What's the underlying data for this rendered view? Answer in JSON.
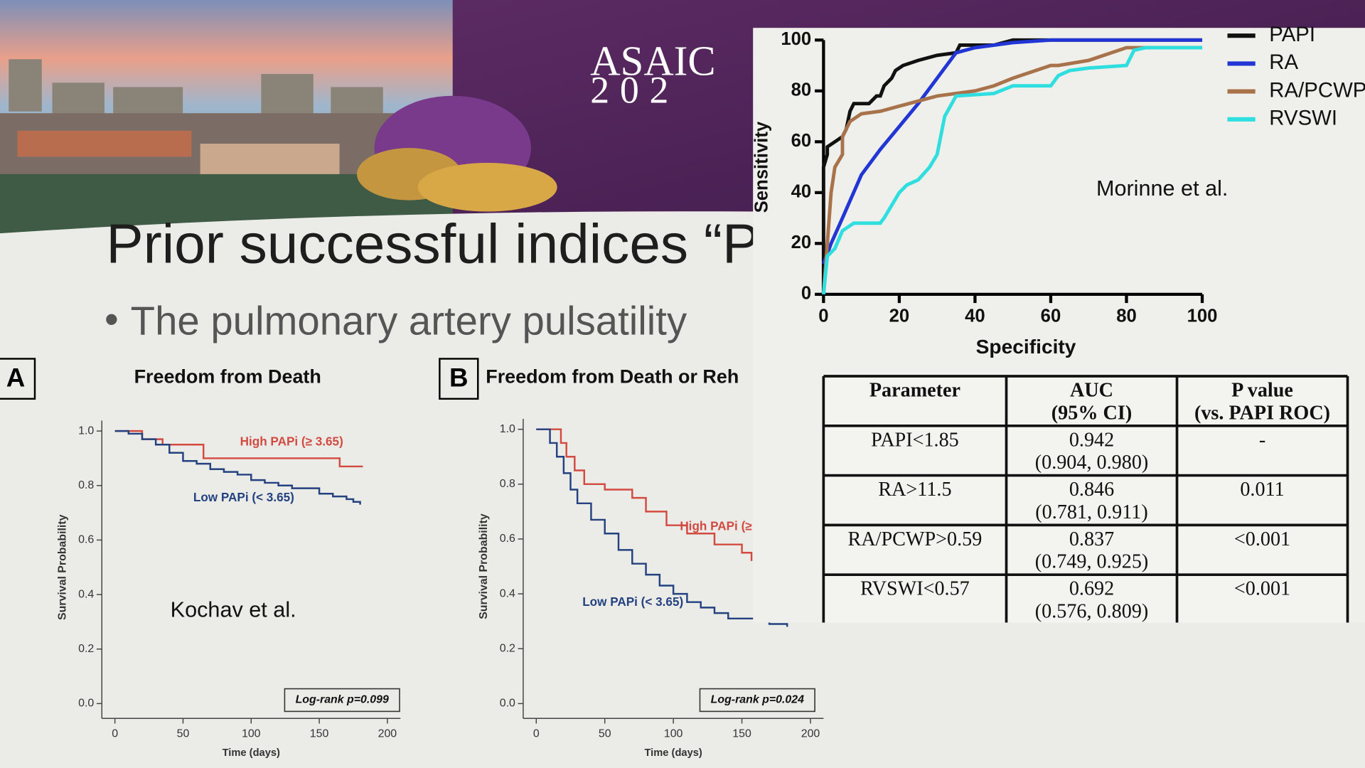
{
  "slide": {
    "banner": [
      "ASAIC",
      "202"
    ],
    "title": "Prior successful indices “PA",
    "bullet": "The pulmonary artery pulsatility"
  },
  "chart_data": [
    {
      "type": "line",
      "interpolation": "step",
      "panel": "A",
      "title": "Freedom from Death",
      "x_label": "Time (days)",
      "y_label": "Survival Probability",
      "xlim": [
        0,
        200
      ],
      "xticks": [
        0,
        50,
        100,
        150,
        200
      ],
      "ylim": [
        0,
        1
      ],
      "yticks": [
        {
          "value": 0,
          "label": "0.0"
        },
        0.2,
        0.4,
        0.6,
        0.8,
        {
          "value": 1,
          "label": "1.0"
        }
      ],
      "annotations": [
        "Log-rank p=0.099",
        "Kochav et al."
      ],
      "series": [
        {
          "name": "High PAPi (≥ 3.65)",
          "color": "#d24a40",
          "x": [
            0,
            10,
            20,
            35,
            65,
            160,
            165,
            182
          ],
          "values": [
            1.0,
            1.0,
            0.97,
            0.95,
            0.9,
            0.9,
            0.87,
            0.87
          ]
        },
        {
          "name": "Low PAPi (< 3.65)",
          "color": "#23427f",
          "x": [
            0,
            10,
            20,
            30,
            40,
            50,
            60,
            70,
            80,
            90,
            100,
            110,
            120,
            130,
            140,
            150,
            160,
            170,
            175,
            180
          ],
          "values": [
            1.0,
            0.99,
            0.97,
            0.95,
            0.92,
            0.89,
            0.88,
            0.86,
            0.85,
            0.84,
            0.82,
            0.81,
            0.8,
            0.79,
            0.79,
            0.77,
            0.76,
            0.75,
            0.74,
            0.73
          ]
        }
      ]
    },
    {
      "type": "line",
      "interpolation": "step",
      "panel": "B",
      "title": "Freedom from Death or Reh",
      "x_label": "Time (days)",
      "y_label": "Survival Probability",
      "xlim": [
        0,
        200
      ],
      "xticks": [
        0,
        50,
        100,
        150,
        200
      ],
      "ylim": [
        0,
        1
      ],
      "yticks": [
        {
          "value": 0,
          "label": "0.0"
        },
        0.2,
        0.4,
        0.6,
        0.8,
        {
          "value": 1,
          "label": "1.0"
        }
      ],
      "annotations": [
        "Log-rank p=0.024"
      ],
      "series": [
        {
          "name": "High PAPi (≥",
          "color": "#d24a40",
          "x": [
            0,
            12,
            18,
            22,
            28,
            35,
            50,
            70,
            80,
            95,
            110,
            130,
            150,
            157
          ],
          "values": [
            1.0,
            1.0,
            0.95,
            0.9,
            0.85,
            0.8,
            0.78,
            0.75,
            0.7,
            0.65,
            0.62,
            0.58,
            0.55,
            0.52
          ]
        },
        {
          "name": "Low PAPi (< 3.65)",
          "color": "#23427f",
          "x": [
            0,
            5,
            10,
            15,
            20,
            25,
            30,
            40,
            50,
            60,
            70,
            80,
            90,
            100,
            110,
            120,
            130,
            140,
            150,
            170,
            183
          ],
          "values": [
            1.0,
            1.0,
            0.95,
            0.9,
            0.84,
            0.78,
            0.73,
            0.67,
            0.62,
            0.56,
            0.51,
            0.47,
            0.43,
            0.4,
            0.37,
            0.35,
            0.33,
            0.31,
            0.31,
            0.29,
            0.28
          ]
        }
      ]
    },
    {
      "type": "line",
      "interpolation": "linear",
      "x_label": "Specificity",
      "y_label": "Sensitivity",
      "xlim": [
        0,
        100
      ],
      "xticks": [
        0,
        20,
        40,
        60,
        80,
        100
      ],
      "ylim": [
        0,
        100
      ],
      "yticks": [
        0,
        20,
        40,
        60,
        80,
        100
      ],
      "annotations": [
        "Morinne et al."
      ],
      "legend": "top-right",
      "series": [
        {
          "name": "PAPI",
          "color": "#111111",
          "x": [
            0,
            0,
            1,
            1,
            3,
            5,
            6,
            7,
            8,
            12,
            14,
            15,
            16,
            18,
            19,
            21,
            25,
            30,
            35,
            36,
            45,
            50,
            100
          ],
          "values": [
            0,
            50,
            55,
            58,
            60,
            62,
            65,
            72,
            75,
            75,
            78,
            78,
            82,
            85,
            88,
            90,
            92,
            94,
            95,
            98,
            98,
            100,
            100
          ]
        },
        {
          "name": "RA",
          "color": "#2236d6",
          "x": [
            0,
            2,
            5,
            10,
            15,
            20,
            25,
            30,
            35,
            40,
            50,
            60,
            100
          ],
          "values": [
            12,
            20,
            30,
            47,
            57,
            66,
            75,
            85,
            95,
            97,
            99,
            100,
            100
          ]
        },
        {
          "name": "RA/PCWP",
          "color": "#a8734b",
          "x": [
            0,
            1,
            2,
            3,
            5,
            5,
            7,
            10,
            15,
            20,
            25,
            30,
            40,
            45,
            50,
            60,
            62,
            70,
            80,
            100
          ],
          "values": [
            0,
            20,
            40,
            50,
            55,
            62,
            68,
            71,
            72,
            74,
            76,
            78,
            80,
            82,
            85,
            90,
            90,
            92,
            97,
            97
          ]
        },
        {
          "name": "RVSWI",
          "color": "#2fdede",
          "x": [
            0,
            1,
            3,
            5,
            8,
            15,
            16,
            18,
            20,
            22,
            25,
            28,
            30,
            32,
            35,
            45,
            50,
            60,
            62,
            65,
            70,
            80,
            82,
            85,
            100
          ],
          "values": [
            0,
            15,
            18,
            25,
            28,
            28,
            30,
            35,
            40,
            43,
            45,
            50,
            55,
            70,
            78,
            79,
            82,
            82,
            86,
            88,
            89,
            90,
            96,
            97,
            97
          ]
        }
      ]
    }
  ],
  "table": {
    "header": [
      [
        "Parameter"
      ],
      [
        "AUC",
        "(95% CI)"
      ],
      [
        "P value",
        "(vs. PAPI ROC)"
      ]
    ],
    "rows": [
      [
        [
          "PAPI<1.85"
        ],
        [
          "0.942",
          "(0.904, 0.980)"
        ],
        [
          "-"
        ]
      ],
      [
        [
          "RA>11.5"
        ],
        [
          "0.846",
          "(0.781, 0.911)"
        ],
        [
          "0.011"
        ]
      ],
      [
        [
          "RA/PCWP>0.59"
        ],
        [
          "0.837",
          "(0.749, 0.925)"
        ],
        [
          "<0.001"
        ]
      ],
      [
        [
          "RVSWI<0.57"
        ],
        [
          "0.692",
          "(0.576, 0.809)"
        ],
        [
          "<0.001"
        ]
      ]
    ]
  }
}
